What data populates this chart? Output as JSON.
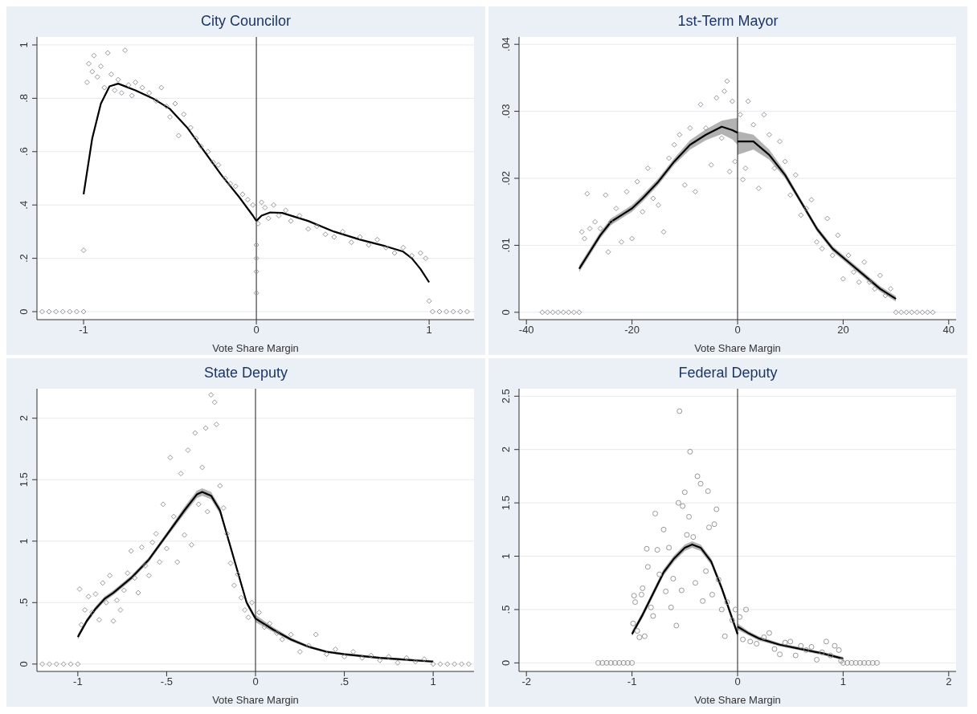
{
  "chart_data": [
    {
      "type": "scatter",
      "title": "City Councilor",
      "xlabel": "Vote Share Margin",
      "xlim": [
        -1.27,
        1.26
      ],
      "xticks": [
        -1,
        0,
        1
      ],
      "ylim": [
        -0.03,
        1.03
      ],
      "yticks": [
        0,
        {
          "value": 0.2,
          "label": ".2"
        },
        {
          "value": 0.4,
          "label": ".4"
        },
        {
          "value": 0.6,
          "label": ".6"
        },
        {
          "value": 0.8,
          "label": ".8"
        },
        1
      ],
      "grid": "y",
      "marker": "diamond",
      "ref_lines": [
        {
          "axis": "x",
          "value": 0
        }
      ],
      "series": [
        {
          "type": "scatter",
          "color": "#8c8c8c",
          "x": [
            -1.24,
            -1.2,
            -1.16,
            -1.12,
            -1.08,
            -1.04,
            -1.0,
            1.02,
            1.06,
            1.1,
            1.14,
            1.18,
            1.22,
            -1.0,
            -0.98,
            -0.97,
            -0.95,
            -0.94,
            -0.92,
            -0.9,
            -0.88,
            -0.86,
            -0.84,
            -0.82,
            -0.8,
            -0.78,
            -0.76,
            -0.74,
            -0.72,
            -0.7,
            -0.66,
            -0.62,
            -0.58,
            -0.55,
            -0.52,
            -0.5,
            -0.47,
            -0.45,
            -0.42,
            -0.38,
            -0.35,
            -0.32,
            -0.28,
            -0.25,
            -0.22,
            -0.18,
            -0.15,
            -0.12,
            -0.08,
            -0.05,
            -0.02,
            0,
            0,
            0,
            0,
            0.01,
            0.03,
            0.05,
            0.07,
            0.1,
            0.13,
            0.17,
            0.2,
            0.25,
            0.3,
            0.35,
            0.4,
            0.45,
            0.5,
            0.55,
            0.6,
            0.65,
            0.7,
            0.75,
            0.8,
            0.85,
            0.9,
            0.95,
            0.98,
            1.0
          ],
          "values": [
            0,
            0,
            0,
            0,
            0,
            0,
            0,
            0,
            0,
            0,
            0,
            0,
            0,
            0.23,
            0.86,
            0.93,
            0.9,
            0.96,
            0.88,
            0.92,
            0.84,
            0.97,
            0.89,
            0.83,
            0.87,
            0.82,
            0.98,
            0.85,
            0.81,
            0.86,
            0.84,
            0.82,
            0.79,
            0.84,
            0.77,
            0.73,
            0.78,
            0.66,
            0.74,
            0.69,
            0.65,
            0.62,
            0.6,
            0.56,
            0.55,
            0.5,
            0.48,
            0.47,
            0.44,
            0.42,
            0.4,
            0.25,
            0.15,
            0.07,
            0.2,
            0.33,
            0.41,
            0.39,
            0.35,
            0.4,
            0.36,
            0.38,
            0.34,
            0.36,
            0.31,
            0.32,
            0.29,
            0.28,
            0.3,
            0.26,
            0.28,
            0.25,
            0.27,
            0.24,
            0.22,
            0.24,
            0.21,
            0.22,
            0.2,
            0.04
          ]
        },
        {
          "type": "line",
          "color": "#000000",
          "marker": "none",
          "x": [
            -1,
            -0.95,
            -0.9,
            -0.85,
            -0.8,
            -0.7,
            -0.6,
            -0.5,
            -0.4,
            -0.3,
            -0.2,
            -0.1,
            -0.02,
            0
          ],
          "values": [
            0.44,
            0.65,
            0.78,
            0.845,
            0.855,
            0.83,
            0.8,
            0.76,
            0.69,
            0.6,
            0.51,
            0.43,
            0.36,
            0.34
          ]
        },
        {
          "type": "line",
          "color": "#000000",
          "marker": "none",
          "x": [
            0,
            0.03,
            0.08,
            0.15,
            0.3,
            0.45,
            0.6,
            0.75,
            0.85,
            0.9,
            0.95,
            1
          ],
          "values": [
            0.34,
            0.36,
            0.372,
            0.37,
            0.34,
            0.3,
            0.27,
            0.245,
            0.225,
            0.2,
            0.16,
            0.11
          ]
        }
      ]
    },
    {
      "type": "scatter",
      "title": "1st-Term Mayor",
      "xlabel": "Vote Share Margin",
      "xlim": [
        -41.4,
        41.4
      ],
      "xticks": [
        -40,
        -20,
        0,
        20,
        40
      ],
      "ylim": [
        -0.0011,
        0.0411
      ],
      "yticks": [
        0,
        {
          "value": 0.01,
          "label": ".01"
        },
        {
          "value": 0.02,
          "label": ".02"
        },
        {
          "value": 0.03,
          "label": ".03"
        },
        {
          "value": 0.04,
          "label": ".04"
        }
      ],
      "grid": "y",
      "marker": "diamond",
      "ref_lines": [
        {
          "axis": "x",
          "value": 0
        }
      ],
      "series": [
        {
          "type": "scatter",
          "color": "#8c8c8c",
          "x": [
            -37,
            -36,
            -35,
            -34,
            -33,
            -32,
            -31,
            -30,
            30,
            31,
            32,
            33,
            34,
            35,
            36,
            37,
            -29.5,
            -29,
            -28.5,
            -28,
            -27,
            -26,
            -25,
            -24.5,
            -24,
            -23,
            -22,
            -21,
            -20,
            -19,
            -18,
            -17,
            -16,
            -15,
            -14,
            -13,
            -12,
            -11,
            -10,
            -9,
            -8,
            -7,
            -6,
            -5,
            -4,
            -3,
            -2.5,
            -2,
            -1.5,
            -1,
            -0.5,
            0.5,
            1,
            1.5,
            2,
            3,
            4,
            5,
            6,
            7,
            8,
            9,
            10,
            11,
            12,
            13,
            14,
            15,
            16,
            17,
            18,
            19,
            20,
            21,
            22,
            23,
            24,
            25,
            26,
            27,
            28,
            29
          ],
          "values": [
            0,
            0,
            0,
            0,
            0,
            0,
            0,
            0,
            0,
            0,
            0,
            0,
            0,
            0,
            0,
            0,
            0.012,
            0.011,
            0.0177,
            0.0125,
            0.0135,
            0.0125,
            0.0175,
            0.009,
            0.0135,
            0.0155,
            0.0105,
            0.018,
            0.011,
            0.0195,
            0.015,
            0.0215,
            0.017,
            0.016,
            0.012,
            0.023,
            0.025,
            0.0265,
            0.019,
            0.0275,
            0.018,
            0.031,
            0.0275,
            0.022,
            0.032,
            0.026,
            0.033,
            0.0345,
            0.021,
            0.0315,
            0.0225,
            0.0295,
            0.0198,
            0.0215,
            0.0315,
            0.028,
            0.0185,
            0.0295,
            0.0265,
            0.0215,
            0.0255,
            0.0225,
            0.0175,
            0.0205,
            0.0145,
            0.0155,
            0.0168,
            0.0105,
            0.0095,
            0.014,
            0.0085,
            0.0115,
            0.005,
            0.0085,
            0.006,
            0.0045,
            0.0075,
            0.0045,
            0.0035,
            0.0055,
            0.0025,
            0.0035
          ]
        },
        {
          "type": "line",
          "color": "#000000",
          "marker": "none",
          "x": [
            -30,
            -28,
            -26,
            -24,
            -22,
            -20,
            -18,
            -15,
            -12,
            -9,
            -6,
            -3,
            -1,
            0
          ],
          "values": [
            0.0065,
            0.009,
            0.0115,
            0.0135,
            0.0145,
            0.0155,
            0.017,
            0.0195,
            0.0225,
            0.025,
            0.0265,
            0.0277,
            0.0272,
            0.0268
          ],
          "lower": [
            0.006,
            0.0085,
            0.011,
            0.013,
            0.014,
            0.015,
            0.0165,
            0.019,
            0.022,
            0.0243,
            0.0257,
            0.0266,
            0.0258,
            0.025
          ],
          "upper": [
            0.007,
            0.0095,
            0.012,
            0.014,
            0.015,
            0.016,
            0.0175,
            0.02,
            0.023,
            0.0257,
            0.0273,
            0.0286,
            0.0289,
            0.029
          ]
        },
        {
          "type": "line",
          "color": "#000000",
          "marker": "none",
          "x": [
            0,
            3,
            6,
            9,
            12,
            15,
            18,
            21,
            24,
            27,
            30
          ],
          "values": [
            0.0255,
            0.0255,
            0.0235,
            0.0205,
            0.0165,
            0.0125,
            0.0095,
            0.0075,
            0.0055,
            0.0035,
            0.002
          ],
          "lower": [
            0.0235,
            0.0243,
            0.0228,
            0.02,
            0.0161,
            0.0121,
            0.0091,
            0.0071,
            0.0051,
            0.0031,
            0.0016
          ],
          "upper": [
            0.027,
            0.0265,
            0.0243,
            0.021,
            0.0169,
            0.0129,
            0.0099,
            0.0079,
            0.0059,
            0.0039,
            0.0024
          ]
        }
      ]
    },
    {
      "type": "scatter",
      "title": "State Deputy",
      "xlabel": "Vote Share Margin",
      "xlim": [
        -1.23,
        1.23
      ],
      "xticks": [
        -1,
        {
          "value": -0.5,
          "label": "-.5"
        },
        0,
        {
          "value": 0.5,
          "label": ".5"
        },
        1
      ],
      "ylim": [
        -0.06,
        2.24
      ],
      "yticks": [
        0,
        {
          "value": 0.5,
          "label": ".5"
        },
        1,
        1.5,
        2
      ],
      "grid": "y",
      "marker": "diamond",
      "ref_lines": [
        {
          "axis": "x",
          "value": 0
        }
      ],
      "series": [
        {
          "type": "scatter",
          "color": "#8c8c8c",
          "x": [
            -1.2,
            -1.16,
            -1.12,
            -1.08,
            -1.04,
            -1.0,
            1.0,
            1.04,
            1.08,
            1.12,
            1.16,
            1.2,
            -0.99,
            -0.98,
            -0.96,
            -0.94,
            -0.92,
            -0.9,
            -0.88,
            -0.86,
            -0.84,
            -0.82,
            -0.8,
            -0.78,
            -0.76,
            -0.74,
            -0.72,
            -0.7,
            -0.68,
            -0.66,
            -0.64,
            -0.62,
            -0.6,
            -0.58,
            -0.56,
            -0.54,
            -0.52,
            -0.5,
            -0.48,
            -0.46,
            -0.44,
            -0.42,
            -0.4,
            -0.38,
            -0.36,
            -0.34,
            -0.32,
            -0.3,
            -0.28,
            -0.27,
            -0.25,
            -0.23,
            -0.22,
            -0.2,
            -0.18,
            -0.16,
            -0.14,
            -0.12,
            -0.1,
            -0.08,
            -0.06,
            -0.04,
            -0.02,
            0.02,
            0.05,
            0.08,
            0.12,
            0.15,
            0.2,
            0.25,
            0.3,
            0.34,
            0.4,
            0.45,
            0.5,
            0.55,
            0.6,
            0.65,
            0.7,
            0.75,
            0.8,
            0.85,
            0.9,
            0.95
          ],
          "values": [
            0,
            0,
            0,
            0,
            0,
            0,
            0,
            0,
            0,
            0,
            0,
            0,
            0.61,
            0.32,
            0.44,
            0.55,
            0.42,
            0.57,
            0.36,
            0.66,
            0.5,
            0.72,
            0.35,
            0.52,
            0.44,
            0.6,
            0.74,
            0.92,
            0.7,
            0.58,
            0.95,
            0.8,
            0.72,
            0.99,
            1.06,
            0.83,
            1.3,
            0.94,
            1.68,
            1.2,
            0.83,
            1.55,
            1.05,
            1.74,
            0.97,
            1.88,
            1.3,
            1.6,
            1.92,
            1.24,
            2.19,
            2.13,
            1.95,
            1.45,
            1.27,
            1.06,
            0.82,
            0.64,
            0.73,
            0.54,
            0.44,
            0.38,
            0.5,
            0.42,
            0.3,
            0.33,
            0.25,
            0.2,
            0.24,
            0.1,
            0.15,
            0.24,
            0.08,
            0.12,
            0.06,
            0.1,
            0.05,
            0.07,
            0.03,
            0.06,
            0.01,
            0.05,
            0.02,
            0.04
          ]
        },
        {
          "type": "line",
          "color": "#000000",
          "marker": "none",
          "x": [
            -1,
            -0.95,
            -0.9,
            -0.85,
            -0.8,
            -0.7,
            -0.6,
            -0.5,
            -0.4,
            -0.33,
            -0.3,
            -0.25,
            -0.2,
            -0.15,
            -0.1,
            -0.05,
            0
          ],
          "values": [
            0.22,
            0.35,
            0.45,
            0.53,
            0.58,
            0.7,
            0.85,
            1.05,
            1.25,
            1.38,
            1.4,
            1.37,
            1.25,
            1.0,
            0.75,
            0.5,
            0.37
          ],
          "lower": [
            0.2,
            0.33,
            0.43,
            0.51,
            0.56,
            0.68,
            0.83,
            1.03,
            1.22,
            1.35,
            1.37,
            1.34,
            1.22,
            0.98,
            0.73,
            0.48,
            0.35
          ],
          "upper": [
            0.24,
            0.37,
            0.47,
            0.55,
            0.6,
            0.72,
            0.87,
            1.07,
            1.28,
            1.41,
            1.43,
            1.4,
            1.28,
            1.02,
            0.77,
            0.52,
            0.39
          ]
        },
        {
          "type": "line",
          "color": "#000000",
          "marker": "none",
          "x": [
            0,
            0.1,
            0.2,
            0.3,
            0.4,
            0.5,
            0.6,
            0.7,
            0.8,
            0.9,
            1
          ],
          "values": [
            0.37,
            0.28,
            0.2,
            0.14,
            0.1,
            0.08,
            0.065,
            0.05,
            0.04,
            0.03,
            0.02
          ],
          "lower": [
            0.34,
            0.26,
            0.185,
            0.13,
            0.09,
            0.07,
            0.055,
            0.04,
            0.03,
            0.02,
            0.01
          ],
          "upper": [
            0.4,
            0.3,
            0.215,
            0.15,
            0.11,
            0.09,
            0.075,
            0.06,
            0.05,
            0.04,
            0.03
          ]
        }
      ]
    },
    {
      "type": "scatter",
      "title": "Federal Deputy",
      "xlabel": "Vote Share Margin",
      "xlim": [
        -2.07,
        2.07
      ],
      "xticks": [
        -2,
        -1,
        0,
        1,
        2
      ],
      "ylim": [
        -0.08,
        2.57
      ],
      "yticks": [
        0,
        {
          "value": 0.5,
          "label": ".5"
        },
        1,
        1.5,
        2,
        2.5
      ],
      "grid": "y",
      "marker": "circle",
      "ref_lines": [
        {
          "axis": "x",
          "value": 0
        }
      ],
      "series": [
        {
          "type": "scatter",
          "color": "#8c8c8c",
          "x": [
            -1.32,
            -1.28,
            -1.24,
            -1.2,
            -1.16,
            -1.12,
            -1.08,
            -1.04,
            -1.0,
            1.0,
            1.04,
            1.08,
            1.12,
            1.16,
            1.2,
            1.24,
            1.28,
            1.32,
            -0.99,
            -0.98,
            -0.97,
            -0.95,
            -0.93,
            -0.91,
            -0.9,
            -0.88,
            -0.86,
            -0.85,
            -0.82,
            -0.8,
            -0.78,
            -0.76,
            -0.74,
            -0.7,
            -0.68,
            -0.65,
            -0.63,
            -0.61,
            -0.58,
            -0.56,
            -0.55,
            -0.53,
            -0.52,
            -0.5,
            -0.48,
            -0.46,
            -0.45,
            -0.42,
            -0.4,
            -0.38,
            -0.35,
            -0.33,
            -0.3,
            -0.28,
            -0.27,
            -0.24,
            -0.22,
            -0.2,
            -0.18,
            -0.15,
            -0.12,
            -0.1,
            -0.05,
            -0.02,
            0.02,
            0.05,
            0.08,
            0.12,
            0.18,
            0.25,
            0.3,
            0.35,
            0.4,
            0.45,
            0.5,
            0.55,
            0.6,
            0.65,
            0.7,
            0.75,
            0.8,
            0.84,
            0.88,
            0.92,
            0.96,
            0.98
          ],
          "values": [
            0,
            0,
            0,
            0,
            0,
            0,
            0,
            0,
            0,
            0,
            0,
            0,
            0,
            0,
            0,
            0,
            0,
            0,
            0.37,
            0.63,
            0.57,
            0.3,
            0.24,
            0.64,
            0.7,
            0.25,
            1.07,
            0.9,
            0.52,
            0.44,
            1.4,
            1.06,
            0.83,
            1.25,
            0.67,
            1.08,
            0.52,
            0.79,
            0.35,
            1.5,
            2.36,
            0.68,
            1.47,
            1.6,
            1.2,
            1.37,
            1.98,
            1.18,
            0.75,
            1.75,
            1.68,
            0.58,
            0.86,
            1.61,
            1.27,
            0.64,
            1.3,
            1.44,
            0.78,
            0.5,
            0.25,
            0.57,
            0.4,
            0.5,
            0.43,
            0.22,
            0.5,
            0.2,
            0.18,
            0.24,
            0.28,
            0.13,
            0.08,
            0.19,
            0.2,
            0.07,
            0.16,
            0.12,
            0.15,
            0.03,
            0.1,
            0.2,
            0.07,
            0.16,
            0.12,
            0.02
          ]
        },
        {
          "type": "line",
          "color": "#000000",
          "marker": "none",
          "x": [
            -1,
            -0.9,
            -0.8,
            -0.7,
            -0.6,
            -0.5,
            -0.43,
            -0.35,
            -0.25,
            -0.15,
            -0.08,
            0
          ],
          "values": [
            0.27,
            0.45,
            0.65,
            0.85,
            0.98,
            1.08,
            1.11,
            1.08,
            0.95,
            0.7,
            0.5,
            0.27
          ],
          "lower": [
            0.25,
            0.42,
            0.62,
            0.82,
            0.95,
            1.05,
            1.08,
            1.05,
            0.92,
            0.67,
            0.47,
            0.24
          ],
          "upper": [
            0.3,
            0.48,
            0.68,
            0.88,
            1.01,
            1.11,
            1.14,
            1.11,
            0.98,
            0.73,
            0.53,
            0.31
          ]
        },
        {
          "type": "line",
          "color": "#000000",
          "marker": "none",
          "x": [
            0,
            0.1,
            0.2,
            0.4,
            0.6,
            0.8,
            1
          ],
          "values": [
            0.34,
            0.28,
            0.23,
            0.17,
            0.13,
            0.09,
            0.04
          ],
          "lower": [
            0.31,
            0.26,
            0.21,
            0.155,
            0.115,
            0.075,
            0.025
          ],
          "upper": [
            0.37,
            0.3,
            0.25,
            0.185,
            0.145,
            0.105,
            0.055
          ]
        }
      ]
    }
  ]
}
